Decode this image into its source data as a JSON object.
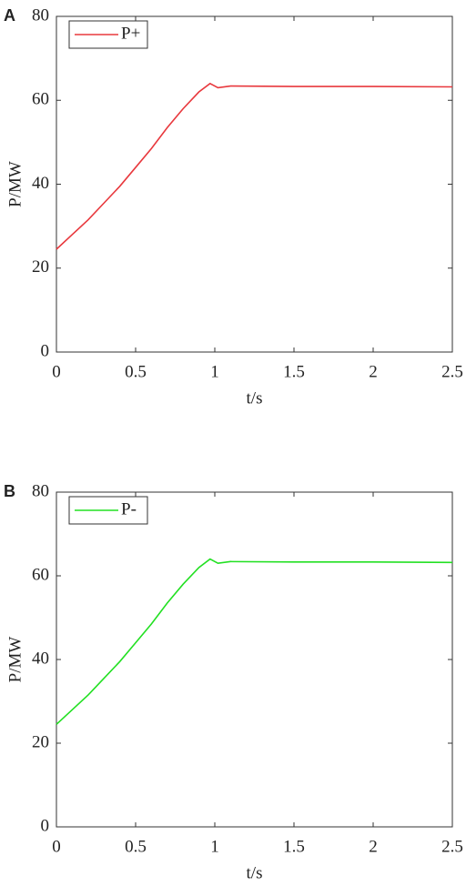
{
  "chart_data": [
    {
      "type": "line",
      "panel_label": "A",
      "x_label": "t/s",
      "y_label": "P/MW",
      "x": [
        0,
        0.1,
        0.2,
        0.3,
        0.4,
        0.5,
        0.6,
        0.7,
        0.8,
        0.9,
        0.97,
        1.02,
        1.1,
        1.5,
        2.0,
        2.5
      ],
      "series": [
        {
          "name": "P+",
          "color": "#e8383d",
          "values": [
            24.5,
            28,
            31.5,
            35.5,
            39.5,
            44,
            48.5,
            53.5,
            58,
            62,
            64,
            63,
            63.4,
            63.3,
            63.3,
            63.2
          ]
        }
      ],
      "xlim": [
        0,
        2.5
      ],
      "xticks": [
        0,
        0.5,
        1,
        1.5,
        2,
        2.5
      ],
      "ylim": [
        0,
        80
      ],
      "yticks": [
        0,
        20,
        40,
        60,
        80
      ],
      "legend": "upper left"
    },
    {
      "type": "line",
      "panel_label": "B",
      "x_label": "t/s",
      "y_label": "P/MW",
      "x": [
        0,
        0.1,
        0.2,
        0.3,
        0.4,
        0.5,
        0.6,
        0.7,
        0.8,
        0.9,
        0.97,
        1.02,
        1.1,
        1.5,
        2.0,
        2.5
      ],
      "series": [
        {
          "name": "P-",
          "color": "#22e022",
          "values": [
            24.5,
            28,
            31.5,
            35.5,
            39.5,
            44,
            48.5,
            53.5,
            58,
            62,
            64,
            63,
            63.4,
            63.3,
            63.3,
            63.2
          ]
        }
      ],
      "xlim": [
        0,
        2.5
      ],
      "xticks": [
        0,
        0.5,
        1,
        1.5,
        2,
        2.5
      ],
      "ylim": [
        0,
        80
      ],
      "yticks": [
        0,
        20,
        40,
        60,
        80
      ],
      "legend": "upper left"
    }
  ]
}
